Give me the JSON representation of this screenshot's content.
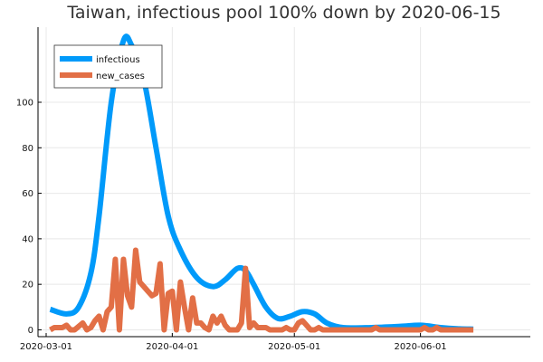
{
  "chart_data": {
    "type": "line",
    "title": "Taiwan, infectious pool 100% down by 2020-06-15",
    "xlabel": "",
    "ylabel": "",
    "x_range": [
      "2020-02-28",
      "2020-06-28"
    ],
    "ylim": [
      -3,
      133
    ],
    "grid": true,
    "legend_position": "top-left",
    "x_ticks": [
      {
        "date": "2020-03-01",
        "label": "2020-03-01"
      },
      {
        "date": "2020-04-01",
        "label": "2020-04-01"
      },
      {
        "date": "2020-05-01",
        "label": "2020-05-01"
      },
      {
        "date": "2020-06-01",
        "label": "2020-06-01"
      }
    ],
    "y_ticks": [
      0,
      20,
      40,
      60,
      80,
      100
    ],
    "series": [
      {
        "name": "infectious",
        "color": "#009AFA",
        "style": "smooth",
        "points": [
          [
            "2020-03-02",
            9
          ],
          [
            "2020-03-06",
            7
          ],
          [
            "2020-03-09",
            10
          ],
          [
            "2020-03-12",
            25
          ],
          [
            "2020-03-14",
            50
          ],
          [
            "2020-03-17",
            100
          ],
          [
            "2020-03-20",
            127
          ],
          [
            "2020-03-22",
            125
          ],
          [
            "2020-03-25",
            110
          ],
          [
            "2020-03-28",
            80
          ],
          [
            "2020-03-31",
            50
          ],
          [
            "2020-04-03",
            35
          ],
          [
            "2020-04-07",
            23
          ],
          [
            "2020-04-11",
            19
          ],
          [
            "2020-04-14",
            22
          ],
          [
            "2020-04-17",
            27
          ],
          [
            "2020-04-19",
            26
          ],
          [
            "2020-04-21",
            20
          ],
          [
            "2020-04-24",
            10
          ],
          [
            "2020-04-27",
            5
          ],
          [
            "2020-04-30",
            6
          ],
          [
            "2020-05-03",
            8
          ],
          [
            "2020-05-06",
            7
          ],
          [
            "2020-05-09",
            3
          ],
          [
            "2020-05-13",
            1
          ],
          [
            "2020-05-20",
            1
          ],
          [
            "2020-05-27",
            1.5
          ],
          [
            "2020-06-01",
            2
          ],
          [
            "2020-06-06",
            1
          ],
          [
            "2020-06-10",
            0.5
          ],
          [
            "2020-06-14",
            0.3
          ]
        ]
      },
      {
        "name": "new_cases",
        "color": "#E26F46",
        "style": "line",
        "points": [
          [
            "2020-03-02",
            0
          ],
          [
            "2020-03-03",
            1
          ],
          [
            "2020-03-04",
            1
          ],
          [
            "2020-03-05",
            1
          ],
          [
            "2020-03-06",
            2
          ],
          [
            "2020-03-07",
            0
          ],
          [
            "2020-03-08",
            0
          ],
          [
            "2020-03-10",
            3
          ],
          [
            "2020-03-11",
            0
          ],
          [
            "2020-03-12",
            1
          ],
          [
            "2020-03-13",
            4
          ],
          [
            "2020-03-14",
            6
          ],
          [
            "2020-03-15",
            0
          ],
          [
            "2020-03-16",
            8
          ],
          [
            "2020-03-17",
            10
          ],
          [
            "2020-03-18",
            31
          ],
          [
            "2020-03-19",
            0
          ],
          [
            "2020-03-20",
            31
          ],
          [
            "2020-03-21",
            15
          ],
          [
            "2020-03-22",
            10
          ],
          [
            "2020-03-23",
            35
          ],
          [
            "2020-03-24",
            21
          ],
          [
            "2020-03-25",
            19
          ],
          [
            "2020-03-26",
            17
          ],
          [
            "2020-03-27",
            15
          ],
          [
            "2020-03-28",
            16
          ],
          [
            "2020-03-29",
            29
          ],
          [
            "2020-03-30",
            0
          ],
          [
            "2020-03-31",
            16
          ],
          [
            "2020-04-01",
            17
          ],
          [
            "2020-04-02",
            0
          ],
          [
            "2020-04-03",
            21
          ],
          [
            "2020-04-04",
            10
          ],
          [
            "2020-04-05",
            0
          ],
          [
            "2020-04-06",
            14
          ],
          [
            "2020-04-07",
            3
          ],
          [
            "2020-04-08",
            3
          ],
          [
            "2020-04-09",
            1
          ],
          [
            "2020-04-10",
            0
          ],
          [
            "2020-04-11",
            6
          ],
          [
            "2020-04-12",
            3
          ],
          [
            "2020-04-13",
            6
          ],
          [
            "2020-04-14",
            2
          ],
          [
            "2020-04-15",
            0
          ],
          [
            "2020-04-16",
            0
          ],
          [
            "2020-04-17",
            0
          ],
          [
            "2020-04-18",
            3
          ],
          [
            "2020-04-19",
            27
          ],
          [
            "2020-04-20",
            1
          ],
          [
            "2020-04-21",
            3
          ],
          [
            "2020-04-22",
            1
          ],
          [
            "2020-04-24",
            1
          ],
          [
            "2020-04-25",
            0
          ],
          [
            "2020-04-28",
            0
          ],
          [
            "2020-04-29",
            1
          ],
          [
            "2020-04-30",
            0
          ],
          [
            "2020-05-01",
            0
          ],
          [
            "2020-05-02",
            3
          ],
          [
            "2020-05-03",
            4
          ],
          [
            "2020-05-04",
            2
          ],
          [
            "2020-05-05",
            0
          ],
          [
            "2020-05-06",
            0
          ],
          [
            "2020-05-07",
            1
          ],
          [
            "2020-05-08",
            0
          ],
          [
            "2020-05-20",
            0
          ],
          [
            "2020-05-21",
            1
          ],
          [
            "2020-05-22",
            0
          ],
          [
            "2020-06-01",
            0
          ],
          [
            "2020-06-02",
            1
          ],
          [
            "2020-06-03",
            0
          ],
          [
            "2020-06-04",
            0
          ],
          [
            "2020-06-05",
            1
          ],
          [
            "2020-06-06",
            0
          ],
          [
            "2020-06-14",
            0
          ]
        ]
      }
    ]
  }
}
